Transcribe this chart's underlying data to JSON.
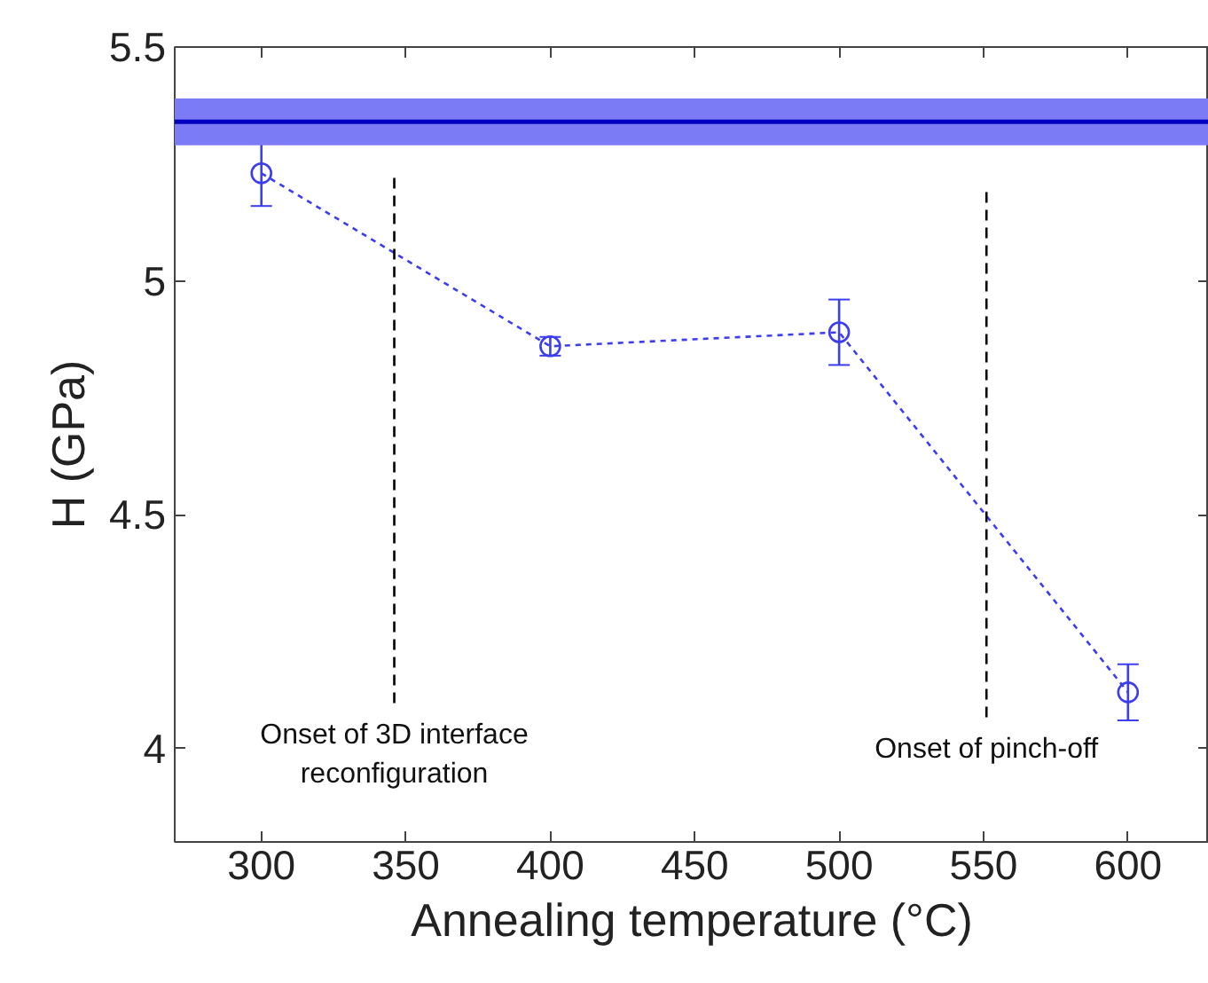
{
  "chart_data": {
    "type": "line",
    "xlabel": "Annealing temperature (°C)",
    "ylabel": "H (GPa)",
    "xlim": [
      270,
      628
    ],
    "ylim": [
      3.8,
      5.5
    ],
    "xticks": [
      300,
      350,
      400,
      450,
      500,
      550,
      600
    ],
    "yticks": [
      4,
      4.5,
      5,
      5.5
    ],
    "grid": false,
    "series": [
      {
        "x": [
          300,
          400,
          500,
          600
        ],
        "values": [
          5.23,
          4.86,
          4.89,
          4.12
        ],
        "errors": [
          0.07,
          0.02,
          0.07,
          0.06
        ],
        "color": "#3c3cf0",
        "marker": "circle",
        "line_style": "dotted"
      },
      {
        "type": "line",
        "x": [
          346,
          346
        ],
        "values": [
          5.22,
          4.09
        ],
        "color": "#000000",
        "marker": "none",
        "line_style": "dashed"
      },
      {
        "type": "line",
        "x": [
          551,
          551
        ],
        "values": [
          5.19,
          4.06
        ],
        "color": "#000000",
        "marker": "none",
        "line_style": "dashed"
      }
    ],
    "ref_lines": [
      {
        "axis": "y",
        "value": 5.34,
        "color": "#0000c0",
        "line_style": "solid"
      }
    ],
    "bands": [
      {
        "axis": "y",
        "from": 5.29,
        "to": 5.39,
        "color": "#7b7bf5"
      }
    ],
    "annotations": [
      "Onset of 3D interface\nreconfiguration",
      "Onset of pinch-off"
    ]
  }
}
